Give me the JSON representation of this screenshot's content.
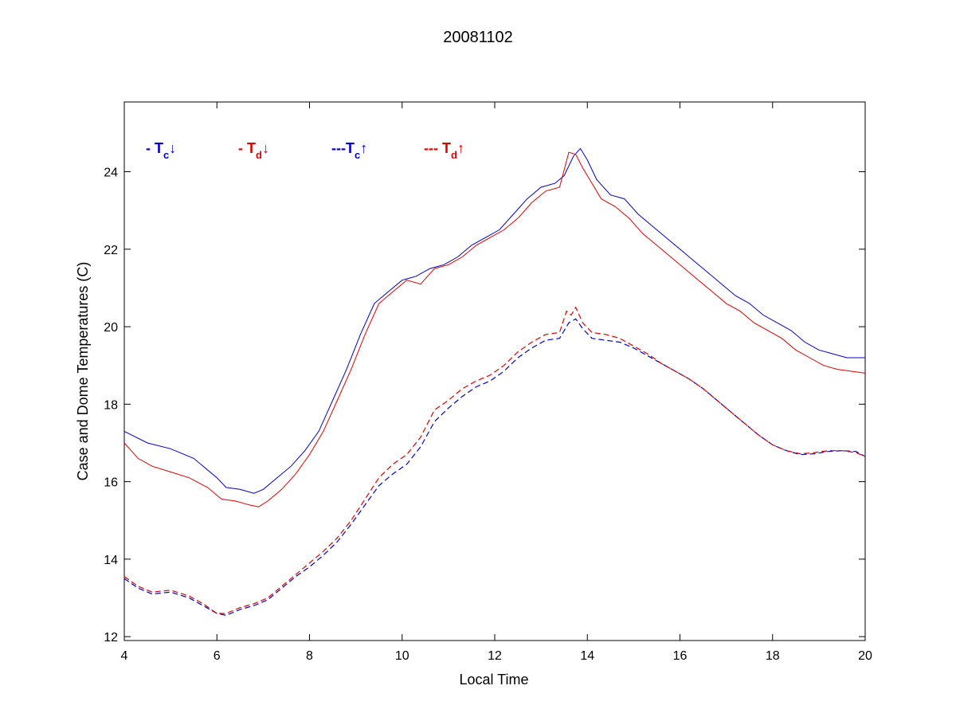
{
  "chart_data": {
    "type": "line",
    "title": "20081102",
    "xlabel": "Local Time",
    "ylabel": "Case and Dome Temperatures (C)",
    "xlim": [
      4,
      20
    ],
    "ylim": [
      11.9,
      25.8
    ],
    "xticks": [
      4,
      6,
      8,
      10,
      12,
      14,
      16,
      18,
      20
    ],
    "yticks": [
      12,
      14,
      16,
      18,
      20,
      22,
      24
    ],
    "grid": false,
    "legend_placement": "top-left inside",
    "legend": [
      {
        "prefix": "- T",
        "sub": "c",
        "arrow": "↓",
        "color": "#0000cc"
      },
      {
        "prefix": "- T",
        "sub": "d",
        "arrow": "↓",
        "color": "#dd0000"
      },
      {
        "prefix": "---T",
        "sub": "c",
        "arrow": "↑",
        "color": "#0000cc"
      },
      {
        "prefix": "--- T",
        "sub": "d",
        "arrow": "↑",
        "color": "#dd0000"
      }
    ],
    "series": [
      {
        "color": "#0000cc",
        "dash": "solid",
        "x": [
          4.0,
          4.5,
          5.0,
          5.5,
          6.0,
          6.2,
          6.5,
          6.8,
          7.0,
          7.3,
          7.6,
          7.9,
          8.2,
          8.5,
          8.8,
          9.1,
          9.4,
          9.7,
          10.0,
          10.3,
          10.6,
          10.9,
          11.2,
          11.5,
          11.8,
          12.1,
          12.4,
          12.7,
          13.0,
          13.3,
          13.5,
          13.7,
          13.85,
          14.0,
          14.2,
          14.5,
          14.8,
          15.1,
          15.4,
          15.7,
          16.0,
          16.3,
          16.6,
          16.9,
          17.2,
          17.5,
          17.8,
          18.1,
          18.4,
          18.7,
          19.0,
          19.3,
          19.6,
          20.0
        ],
        "y": [
          17.3,
          17.0,
          16.85,
          16.6,
          16.1,
          15.85,
          15.8,
          15.7,
          15.8,
          16.1,
          16.4,
          16.8,
          17.3,
          18.1,
          18.9,
          19.8,
          20.6,
          20.9,
          21.2,
          21.3,
          21.5,
          21.6,
          21.8,
          22.1,
          22.3,
          22.5,
          22.9,
          23.3,
          23.6,
          23.7,
          23.9,
          24.4,
          24.6,
          24.3,
          23.8,
          23.4,
          23.3,
          22.9,
          22.6,
          22.3,
          22.0,
          21.7,
          21.4,
          21.1,
          20.8,
          20.6,
          20.3,
          20.1,
          19.9,
          19.6,
          19.4,
          19.3,
          19.2,
          19.2
        ]
      },
      {
        "color": "#dd0000",
        "dash": "solid",
        "x": [
          4.0,
          4.3,
          4.6,
          5.0,
          5.4,
          5.8,
          6.1,
          6.4,
          6.7,
          6.9,
          7.1,
          7.4,
          7.7,
          8.0,
          8.3,
          8.6,
          8.9,
          9.2,
          9.5,
          9.8,
          10.1,
          10.4,
          10.7,
          11.0,
          11.3,
          11.6,
          11.9,
          12.2,
          12.5,
          12.8,
          13.1,
          13.4,
          13.6,
          13.75,
          13.9,
          14.1,
          14.3,
          14.6,
          14.9,
          15.2,
          15.5,
          15.8,
          16.1,
          16.4,
          16.7,
          17.0,
          17.3,
          17.6,
          17.9,
          18.2,
          18.5,
          18.8,
          19.1,
          19.4,
          19.7,
          20.0
        ],
        "y": [
          17.0,
          16.6,
          16.4,
          16.25,
          16.1,
          15.85,
          15.55,
          15.5,
          15.4,
          15.35,
          15.5,
          15.8,
          16.2,
          16.7,
          17.3,
          18.1,
          18.9,
          19.8,
          20.6,
          20.9,
          21.2,
          21.1,
          21.5,
          21.6,
          21.8,
          22.1,
          22.3,
          22.5,
          22.8,
          23.2,
          23.5,
          23.6,
          24.5,
          24.45,
          24.1,
          23.7,
          23.3,
          23.1,
          22.8,
          22.4,
          22.1,
          21.8,
          21.5,
          21.2,
          20.9,
          20.6,
          20.4,
          20.1,
          19.9,
          19.7,
          19.4,
          19.2,
          19.0,
          18.9,
          18.85,
          18.8
        ]
      },
      {
        "color": "#0000cc",
        "dash": "dashed",
        "x": [
          4.0,
          4.3,
          4.6,
          5.0,
          5.4,
          5.7,
          6.0,
          6.2,
          6.5,
          6.8,
          7.1,
          7.4,
          7.7,
          8.0,
          8.3,
          8.6,
          8.9,
          9.2,
          9.5,
          9.8,
          10.1,
          10.4,
          10.7,
          11.0,
          11.3,
          11.6,
          11.9,
          12.2,
          12.5,
          12.8,
          13.1,
          13.4,
          13.6,
          13.75,
          13.9,
          14.1,
          14.4,
          14.7,
          15.0,
          15.3,
          15.6,
          15.9,
          16.2,
          16.5,
          16.8,
          17.1,
          17.4,
          17.7,
          18.0,
          18.3,
          18.6,
          18.9,
          19.2,
          19.5,
          19.8,
          20.0
        ],
        "y": [
          13.5,
          13.25,
          13.1,
          13.15,
          13.0,
          12.8,
          12.6,
          12.55,
          12.7,
          12.8,
          12.95,
          13.25,
          13.55,
          13.8,
          14.1,
          14.45,
          14.9,
          15.4,
          15.9,
          16.2,
          16.45,
          16.9,
          17.55,
          17.9,
          18.2,
          18.45,
          18.6,
          18.85,
          19.2,
          19.45,
          19.65,
          19.7,
          20.1,
          20.2,
          19.95,
          19.7,
          19.65,
          19.6,
          19.45,
          19.25,
          19.05,
          18.85,
          18.65,
          18.4,
          18.1,
          17.8,
          17.5,
          17.2,
          16.95,
          16.8,
          16.7,
          16.72,
          16.78,
          16.8,
          16.78,
          16.65
        ]
      },
      {
        "color": "#dd0000",
        "dash": "dashed",
        "x": [
          4.0,
          4.3,
          4.6,
          5.0,
          5.4,
          5.7,
          6.0,
          6.2,
          6.5,
          6.8,
          7.1,
          7.4,
          7.7,
          8.0,
          8.3,
          8.6,
          8.9,
          9.2,
          9.5,
          9.8,
          10.1,
          10.4,
          10.7,
          11.0,
          11.3,
          11.6,
          11.9,
          12.2,
          12.5,
          12.8,
          13.1,
          13.4,
          13.55,
          13.65,
          13.75,
          13.9,
          14.1,
          14.4,
          14.7,
          15.0,
          15.3,
          15.6,
          15.9,
          16.2,
          16.5,
          16.8,
          17.1,
          17.4,
          17.7,
          18.0,
          18.3,
          18.6,
          18.9,
          19.2,
          19.5,
          19.8,
          20.0
        ],
        "y": [
          13.55,
          13.3,
          13.15,
          13.2,
          13.05,
          12.85,
          12.6,
          12.6,
          12.75,
          12.85,
          13.0,
          13.3,
          13.6,
          13.9,
          14.2,
          14.55,
          15.0,
          15.55,
          16.1,
          16.45,
          16.7,
          17.15,
          17.85,
          18.1,
          18.4,
          18.6,
          18.75,
          19.0,
          19.35,
          19.6,
          19.8,
          19.85,
          20.4,
          20.3,
          20.5,
          20.1,
          19.85,
          19.8,
          19.7,
          19.5,
          19.3,
          19.05,
          18.85,
          18.65,
          18.4,
          18.1,
          17.8,
          17.5,
          17.2,
          16.95,
          16.8,
          16.72,
          16.75,
          16.8,
          16.8,
          16.75,
          16.65
        ]
      }
    ]
  }
}
